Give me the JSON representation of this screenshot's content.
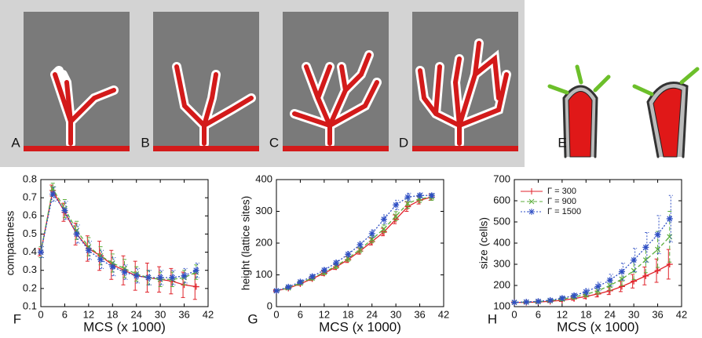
{
  "panel_labels": [
    "A",
    "B",
    "C",
    "D",
    "E"
  ],
  "chart_data": [
    {
      "type": "line",
      "panel": "F",
      "x_label": "MCS (x 1000)",
      "y_label": "compactness",
      "xlim": [
        0,
        42
      ],
      "xticks": [
        0,
        6,
        12,
        18,
        24,
        30,
        36,
        42
      ],
      "ylim": [
        0.1,
        0.8
      ],
      "yticks": [
        0.1,
        0.2,
        0.3,
        0.4,
        0.5,
        0.6,
        0.7,
        0.8
      ],
      "x": [
        0,
        3,
        6,
        9,
        12,
        15,
        18,
        21,
        24,
        27,
        30,
        33,
        36,
        39
      ],
      "series": [
        {
          "color": "#e0232b",
          "values": [
            0.4,
            0.74,
            0.62,
            0.5,
            0.42,
            0.38,
            0.33,
            0.3,
            0.27,
            0.26,
            0.25,
            0.24,
            0.22,
            0.21
          ],
          "errors": [
            0.02,
            0.03,
            0.05,
            0.06,
            0.07,
            0.08,
            0.08,
            0.08,
            0.08,
            0.08,
            0.07,
            0.07,
            0.07,
            0.07
          ]
        },
        {
          "color": "#5cae3c",
          "values": [
            0.4,
            0.75,
            0.64,
            0.52,
            0.43,
            0.38,
            0.34,
            0.31,
            0.28,
            0.26,
            0.25,
            0.25,
            0.26,
            0.29
          ],
          "errors": [
            0.03,
            0.03,
            0.05,
            0.05,
            0.05,
            0.05,
            0.05,
            0.05,
            0.04,
            0.04,
            0.04,
            0.04,
            0.04,
            0.04
          ]
        },
        {
          "color": "#2f4fc4",
          "values": [
            0.4,
            0.72,
            0.63,
            0.5,
            0.41,
            0.36,
            0.32,
            0.29,
            0.27,
            0.26,
            0.26,
            0.26,
            0.27,
            0.3
          ],
          "errors": [
            0.03,
            0.04,
            0.05,
            0.05,
            0.05,
            0.05,
            0.05,
            0.04,
            0.04,
            0.04,
            0.04,
            0.04,
            0.04,
            0.04
          ]
        }
      ]
    },
    {
      "type": "line",
      "panel": "G",
      "x_label": "MCS (x 1000)",
      "y_label": "height (lattice sites)",
      "xlim": [
        0,
        42
      ],
      "xticks": [
        0,
        6,
        12,
        18,
        24,
        30,
        36,
        42
      ],
      "ylim": [
        0,
        400
      ],
      "yticks": [
        0,
        100,
        200,
        300,
        400
      ],
      "x": [
        0,
        3,
        6,
        9,
        12,
        15,
        18,
        21,
        24,
        27,
        30,
        33,
        36,
        39
      ],
      "series": [
        {
          "color": "#e0232b",
          "values": [
            50,
            58,
            72,
            88,
            105,
            125,
            148,
            175,
            205,
            235,
            275,
            315,
            335,
            345
          ],
          "errors": [
            3,
            4,
            5,
            6,
            7,
            8,
            9,
            10,
            11,
            12,
            14,
            15,
            12,
            10
          ]
        },
        {
          "color": "#5cae3c",
          "values": [
            50,
            59,
            74,
            90,
            108,
            128,
            152,
            180,
            212,
            245,
            285,
            325,
            340,
            345
          ],
          "errors": [
            3,
            4,
            5,
            6,
            7,
            8,
            9,
            10,
            11,
            12,
            14,
            15,
            12,
            10
          ]
        },
        {
          "color": "#2f4fc4",
          "values": [
            50,
            62,
            78,
            95,
            115,
            138,
            165,
            195,
            230,
            275,
            320,
            345,
            350,
            350
          ],
          "errors": [
            3,
            4,
            5,
            6,
            7,
            8,
            9,
            10,
            12,
            14,
            15,
            12,
            8,
            6
          ]
        }
      ]
    },
    {
      "type": "line",
      "panel": "H",
      "x_label": "MCS (x 1000)",
      "y_label": "size (cells)",
      "legend": "upper left",
      "xlim": [
        0,
        42
      ],
      "xticks": [
        0,
        6,
        12,
        18,
        24,
        30,
        36,
        42
      ],
      "ylim": [
        100,
        700
      ],
      "yticks": [
        100,
        200,
        300,
        400,
        500,
        600,
        700
      ],
      "x": [
        0,
        3,
        6,
        9,
        12,
        15,
        18,
        21,
        24,
        27,
        30,
        33,
        36,
        39
      ],
      "series": [
        {
          "name": "Γ = 300",
          "color": "#e0232b",
          "values": [
            120,
            120,
            122,
            125,
            130,
            138,
            148,
            160,
            175,
            195,
            220,
            245,
            270,
            300
          ],
          "errors": [
            2,
            3,
            4,
            5,
            6,
            8,
            10,
            14,
            18,
            24,
            32,
            42,
            55,
            70
          ]
        },
        {
          "name": "Γ = 900",
          "color": "#5cae3c",
          "values": [
            120,
            121,
            123,
            128,
            135,
            145,
            158,
            175,
            200,
            230,
            270,
            320,
            370,
            430
          ],
          "errors": [
            2,
            3,
            4,
            5,
            7,
            9,
            12,
            16,
            22,
            30,
            42,
            60,
            85,
            120
          ]
        },
        {
          "name": "Γ = 1500",
          "color": "#2f4fc4",
          "values": [
            120,
            122,
            125,
            130,
            140,
            152,
            170,
            195,
            225,
            265,
            320,
            380,
            440,
            515
          ],
          "errors": [
            2,
            3,
            4,
            6,
            8,
            11,
            15,
            20,
            28,
            40,
            55,
            70,
            90,
            110
          ]
        }
      ]
    }
  ]
}
